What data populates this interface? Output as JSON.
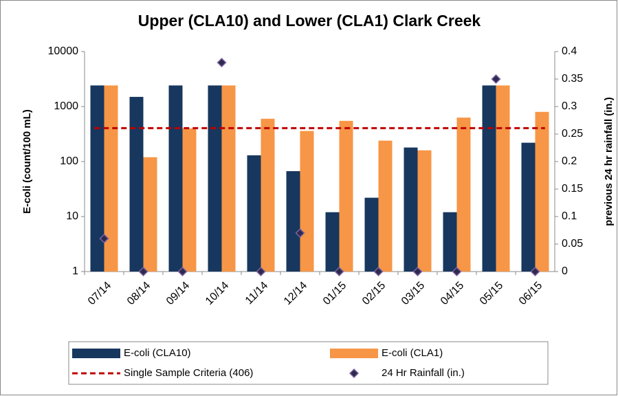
{
  "chart_data": {
    "type": "bar",
    "title": "Upper (CLA10) and Lower (CLA1) Clark Creek",
    "y_label": "E-coli (count/100 mL)",
    "y2_label": "previous 24 hr rainfall (in.)",
    "categories": [
      "07/14",
      "08/14",
      "09/14",
      "10/14",
      "11/14",
      "12/14",
      "01/15",
      "02/15",
      "03/15",
      "04/15",
      "05/15",
      "06/15"
    ],
    "series": [
      {
        "name": "E-coli (CLA10)",
        "color": "#17375e",
        "values": [
          2420,
          1500,
          2420,
          2420,
          130,
          67,
          12,
          22,
          180,
          12,
          2420,
          220
        ]
      },
      {
        "name": "E-coli (CLA1)",
        "color": "#f79646",
        "values": [
          2420,
          120,
          400,
          2420,
          600,
          360,
          550,
          240,
          160,
          630,
          2420,
          800
        ]
      },
      {
        "name": "24 Hr Rainfall (in.)",
        "color": "#2e2a4f",
        "axis": "y2",
        "values": [
          0.06,
          0,
          0,
          0.38,
          0,
          0.07,
          0,
          0,
          0,
          0,
          0.35,
          0
        ]
      }
    ],
    "threshold": {
      "name": "Single Sample Criteria (406)",
      "value": 406,
      "color": "#c00000"
    },
    "ylim": [
      1,
      10000
    ],
    "yticks": [
      1,
      10,
      100,
      1000,
      10000
    ],
    "log_y": true,
    "y2lim": [
      0,
      0.4
    ],
    "y2ticks": [
      0,
      0.05,
      0.1,
      0.15,
      0.2,
      0.25,
      0.3,
      0.35,
      0.4
    ],
    "legend": "bottom"
  }
}
